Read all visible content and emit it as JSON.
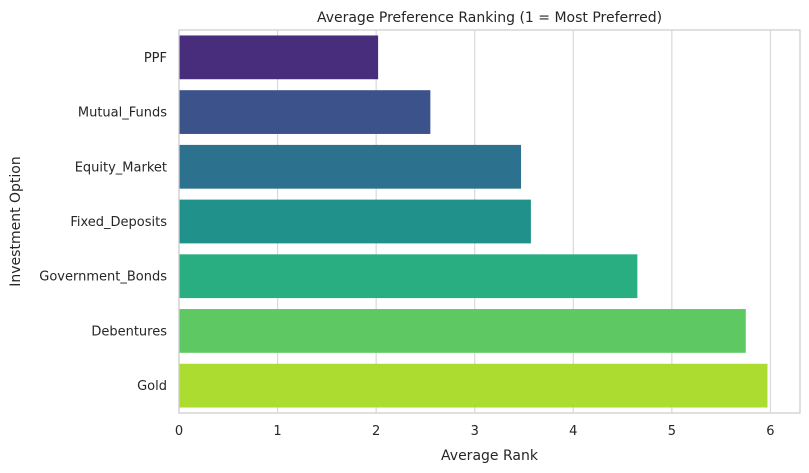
{
  "chart_data": {
    "type": "bar",
    "orientation": "horizontal",
    "title": "Average Preference Ranking (1 = Most Preferred)",
    "xlabel": "Average Rank",
    "ylabel": "Investment Option",
    "categories": [
      "PPF",
      "Mutual_Funds",
      "Equity_Market",
      "Fixed_Deposits",
      "Government_Bonds",
      "Debentures",
      "Gold"
    ],
    "values": [
      2.02,
      2.55,
      3.47,
      3.57,
      4.65,
      5.75,
      5.97
    ],
    "colors": [
      "#472d7b",
      "#3b528b",
      "#2c728e",
      "#21918c",
      "#28ae80",
      "#5ec962",
      "#addc30"
    ],
    "xlim": [
      0,
      6.3
    ],
    "xticks": [
      0,
      1,
      2,
      3,
      4,
      5,
      6
    ],
    "grid": "vertical"
  }
}
